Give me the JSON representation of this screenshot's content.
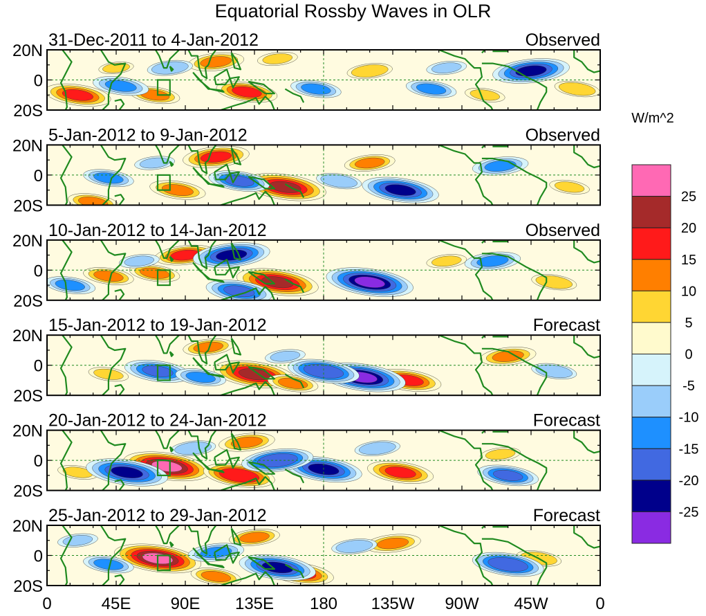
{
  "title": "Equatorial Rossby Waves in OLR",
  "units": "W/m^2",
  "colors": {
    "frame": "#000000",
    "coast": "#1f8a1f",
    "refline": "#1f8a1f",
    "region_box": "#1f8a1f",
    "levels": [
      "#8a2be2",
      "#00008b",
      "#4169e1",
      "#1e90ff",
      "#9acdfa",
      "#d6f3fb",
      "#fffacd",
      "#ffd633",
      "#ff7f00",
      "#ff1a1a",
      "#a52a2a",
      "#ff69b4"
    ]
  },
  "chart_data": {
    "type": "heatmap",
    "variable": "OLR anomaly",
    "x_ticks": [
      "0",
      "45E",
      "90E",
      "135E",
      "180",
      "135W",
      "90W",
      "45W",
      "0"
    ],
    "y_ticks": [
      "20N",
      "0",
      "20S"
    ],
    "xlim_deg_east": [
      0,
      360
    ],
    "ylim_deg": [
      -20,
      20
    ],
    "colorbar": {
      "labels": [
        "25",
        "20",
        "15",
        "10",
        "5",
        "0",
        "-5",
        "-10",
        "-15",
        "-20",
        "-25"
      ],
      "levels": [
        -25,
        -20,
        -15,
        -10,
        -5,
        0,
        5,
        10,
        15,
        20,
        25
      ]
    },
    "panels": [
      {
        "period": "31-Dec-2011 to 4-Jan-2012",
        "status": "Observed",
        "anomalies": [
          {
            "lon": 20,
            "lat": -10,
            "value": 18
          },
          {
            "lon": 130,
            "lat": -8,
            "value": 16
          },
          {
            "lon": 110,
            "lat": 12,
            "value": 14
          },
          {
            "lon": 70,
            "lat": -10,
            "value": 12
          },
          {
            "lon": 210,
            "lat": 6,
            "value": 10
          },
          {
            "lon": 285,
            "lat": -10,
            "value": 8
          },
          {
            "lon": 345,
            "lat": -6,
            "value": 10
          },
          {
            "lon": 150,
            "lat": 14,
            "value": 8
          },
          {
            "lon": 45,
            "lat": 8,
            "value": 6
          },
          {
            "lon": 315,
            "lat": 6,
            "value": -22
          },
          {
            "lon": 48,
            "lat": -4,
            "value": -14
          },
          {
            "lon": 175,
            "lat": -6,
            "value": -12
          },
          {
            "lon": 250,
            "lat": -6,
            "value": -12
          },
          {
            "lon": 80,
            "lat": 8,
            "value": -10
          },
          {
            "lon": 260,
            "lat": 8,
            "value": -8
          }
        ]
      },
      {
        "period": "5-Jan-2012 to 9-Jan-2012",
        "status": "Observed",
        "anomalies": [
          {
            "lon": 155,
            "lat": -8,
            "value": 24
          },
          {
            "lon": 110,
            "lat": 12,
            "value": 18
          },
          {
            "lon": 85,
            "lat": -10,
            "value": 14
          },
          {
            "lon": 210,
            "lat": 8,
            "value": 12
          },
          {
            "lon": 30,
            "lat": -18,
            "value": 12
          },
          {
            "lon": 340,
            "lat": -8,
            "value": 8
          },
          {
            "lon": 230,
            "lat": -10,
            "value": -22
          },
          {
            "lon": 125,
            "lat": -4,
            "value": -16
          },
          {
            "lon": 295,
            "lat": 6,
            "value": -14
          },
          {
            "lon": 40,
            "lat": -2,
            "value": -12
          },
          {
            "lon": 190,
            "lat": -4,
            "value": -10
          },
          {
            "lon": 70,
            "lat": 8,
            "value": -8
          }
        ]
      },
      {
        "period": "10-Jan-2012 to 14-Jan-2012",
        "status": "Observed",
        "anomalies": [
          {
            "lon": 150,
            "lat": -8,
            "value": 24
          },
          {
            "lon": 90,
            "lat": 10,
            "value": 16
          },
          {
            "lon": 40,
            "lat": -4,
            "value": 12
          },
          {
            "lon": 70,
            "lat": -2,
            "value": 12
          },
          {
            "lon": 330,
            "lat": -8,
            "value": 10
          },
          {
            "lon": 260,
            "lat": 6,
            "value": 8
          },
          {
            "lon": 210,
            "lat": -8,
            "value": -26
          },
          {
            "lon": 120,
            "lat": 10,
            "value": -22
          },
          {
            "lon": 125,
            "lat": -14,
            "value": -18
          },
          {
            "lon": 290,
            "lat": 6,
            "value": -14
          },
          {
            "lon": 15,
            "lat": -10,
            "value": -12
          },
          {
            "lon": 60,
            "lat": 6,
            "value": -8
          }
        ]
      },
      {
        "period": "15-Jan-2012 to 19-Jan-2012",
        "status": "Forecast",
        "anomalies": [
          {
            "lon": 135,
            "lat": -6,
            "value": 24
          },
          {
            "lon": 235,
            "lat": -10,
            "value": 18
          },
          {
            "lon": 300,
            "lat": 6,
            "value": 14
          },
          {
            "lon": 105,
            "lat": 12,
            "value": 12
          },
          {
            "lon": 160,
            "lat": -12,
            "value": 12
          },
          {
            "lon": 40,
            "lat": -6,
            "value": 8
          },
          {
            "lon": 205,
            "lat": -8,
            "value": -26
          },
          {
            "lon": 180,
            "lat": -4,
            "value": -20
          },
          {
            "lon": 72,
            "lat": -4,
            "value": -18
          },
          {
            "lon": 100,
            "lat": -8,
            "value": -12
          },
          {
            "lon": 330,
            "lat": -4,
            "value": -10
          },
          {
            "lon": 155,
            "lat": 6,
            "value": -8
          }
        ]
      },
      {
        "period": "20-Jan-2012 to 24-Jan-2012",
        "status": "Forecast",
        "anomalies": [
          {
            "lon": 78,
            "lat": -4,
            "value": 26
          },
          {
            "lon": 125,
            "lat": -10,
            "value": 20
          },
          {
            "lon": 230,
            "lat": -8,
            "value": 18
          },
          {
            "lon": 130,
            "lat": 12,
            "value": 14
          },
          {
            "lon": 295,
            "lat": 4,
            "value": 8
          },
          {
            "lon": 20,
            "lat": -8,
            "value": 8
          },
          {
            "lon": 52,
            "lat": -8,
            "value": -24
          },
          {
            "lon": 180,
            "lat": -6,
            "value": -22
          },
          {
            "lon": 150,
            "lat": 0,
            "value": -20
          },
          {
            "lon": 300,
            "lat": -10,
            "value": -16
          },
          {
            "lon": 95,
            "lat": 8,
            "value": -10
          },
          {
            "lon": 215,
            "lat": 8,
            "value": -10
          }
        ]
      },
      {
        "period": "25-Jan-2012 to 29-Jan-2012",
        "status": "Forecast",
        "anomalies": [
          {
            "lon": 72,
            "lat": -2,
            "value": 26
          },
          {
            "lon": 165,
            "lat": -12,
            "value": 18
          },
          {
            "lon": 225,
            "lat": 8,
            "value": 14
          },
          {
            "lon": 135,
            "lat": 12,
            "value": 12
          },
          {
            "lon": 110,
            "lat": -14,
            "value": 12
          },
          {
            "lon": 320,
            "lat": -2,
            "value": 10
          },
          {
            "lon": 150,
            "lat": -8,
            "value": -22
          },
          {
            "lon": 300,
            "lat": -6,
            "value": -20
          },
          {
            "lon": 110,
            "lat": 2,
            "value": -14
          },
          {
            "lon": 40,
            "lat": -6,
            "value": -12
          },
          {
            "lon": 200,
            "lat": 6,
            "value": -10
          },
          {
            "lon": 20,
            "lat": 10,
            "value": -8
          }
        ]
      }
    ]
  }
}
